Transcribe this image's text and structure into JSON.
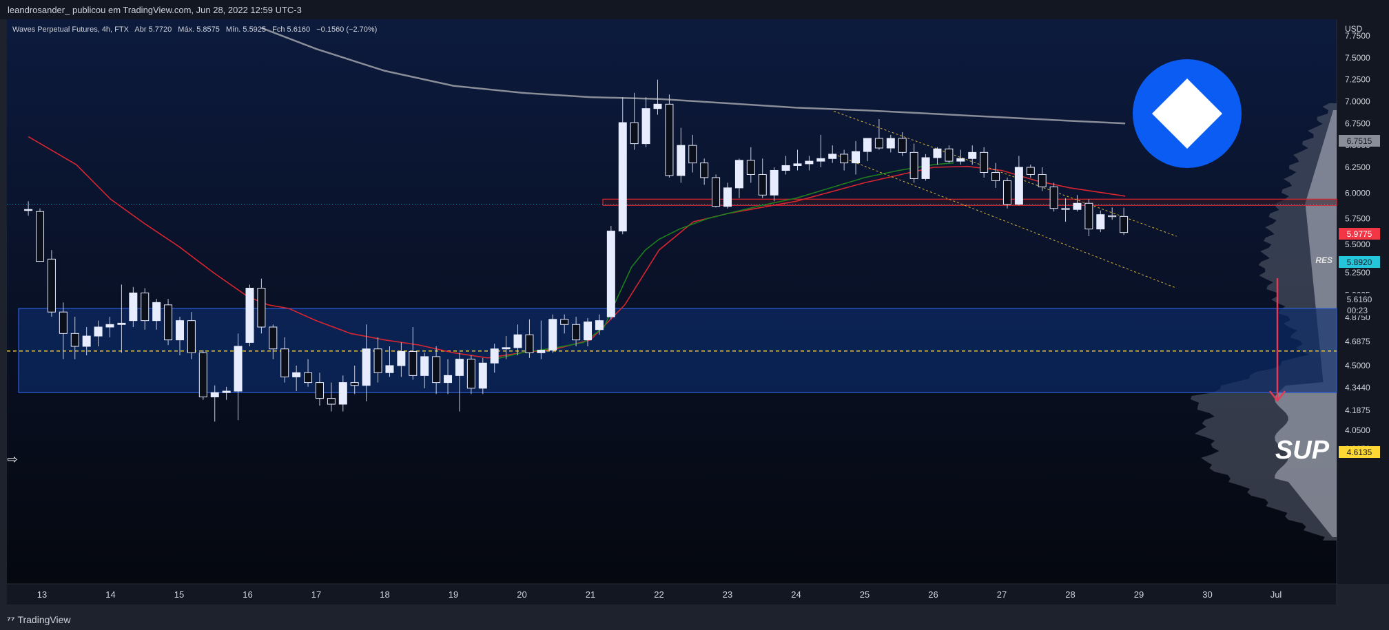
{
  "header": {
    "caption": "leandrosander_ publicou em TradingView.com, Jun 28, 2022 12:59 UTC-3"
  },
  "legend": {
    "symbol": "Waves Perpetual Futures, 4h, FTX",
    "o_label": "Abr",
    "o_value": "5.7720",
    "h_label": "Máx.",
    "h_value": "5.8575",
    "l_label": "Mín.",
    "l_value": "5.5925",
    "c_label": "Fch",
    "c_value": "5.6160",
    "change": "−0.1560 (−2.70%)"
  },
  "footer": {
    "brand": "TradingView"
  },
  "colors": {
    "background": "#0b1220",
    "zone_fill": "#0d2d6b",
    "candle_up": "#e8ecff",
    "candle_down": "#0b0f1a",
    "ema_red": "#d9252f",
    "ema_green": "#1d7f1d",
    "ma_grey": "#8a8e99",
    "res_label": "#26c6da",
    "red_label": "#f23645",
    "sup_label": "#fdd835",
    "logo_blue": "#0b5cf2"
  },
  "annotations": {
    "res": "RES",
    "sup": "SUP",
    "price_current": "5.6160",
    "countdown": "00:23",
    "price_red": "5.9775",
    "price_res": "5.8920",
    "price_sup": "4.6135",
    "price_grey": "6.7515"
  },
  "chart_data": {
    "type": "candlestick",
    "title": "Waves Perpetual Futures, 4h, FTX",
    "currency": "USD",
    "ylim": [
      3.875,
      7.875
    ],
    "x_ticks": [
      "13",
      "14",
      "15",
      "16",
      "17",
      "18",
      "19",
      "20",
      "21",
      "22",
      "23",
      "24",
      "25",
      "26",
      "27",
      "28",
      "29",
      "30",
      "Jul"
    ],
    "y_ticks": [
      "7.7500",
      "7.5000",
      "7.2500",
      "7.0000",
      "6.7500",
      "6.5000",
      "6.2500",
      "6.0000",
      "5.7500",
      "5.5000",
      "5.2500",
      "5.0625",
      "4.8750",
      "4.6875",
      "4.5000",
      "4.3440",
      "4.1875",
      "4.0500",
      "3.9250"
    ],
    "zones": [
      {
        "name": "SUP",
        "low": 4.31,
        "high": 4.95
      },
      {
        "name": "RES",
        "low": 5.88,
        "high": 5.94
      }
    ],
    "horizontal_levels": [
      4.6135,
      5.892
    ],
    "candles": [
      {
        "t": 12.8,
        "o": 5.84,
        "h": 5.92,
        "l": 5.78,
        "c": 5.84
      },
      {
        "t": 12.97,
        "o": 5.82,
        "h": 5.85,
        "l": 5.35,
        "c": 5.35
      },
      {
        "t": 13.14,
        "o": 5.37,
        "h": 5.45,
        "l": 4.88,
        "c": 4.92
      },
      {
        "t": 13.31,
        "o": 4.92,
        "h": 5.0,
        "l": 4.55,
        "c": 4.75
      },
      {
        "t": 13.48,
        "o": 4.75,
        "h": 4.88,
        "l": 4.55,
        "c": 4.65
      },
      {
        "t": 13.65,
        "o": 4.65,
        "h": 4.8,
        "l": 4.58,
        "c": 4.73
      },
      {
        "t": 13.82,
        "o": 4.73,
        "h": 4.85,
        "l": 4.65,
        "c": 4.8
      },
      {
        "t": 13.99,
        "o": 4.8,
        "h": 4.88,
        "l": 4.72,
        "c": 4.82
      },
      {
        "t": 14.16,
        "o": 4.82,
        "h": 5.15,
        "l": 4.6,
        "c": 4.83
      },
      {
        "t": 14.33,
        "o": 4.85,
        "h": 5.13,
        "l": 4.8,
        "c": 5.08
      },
      {
        "t": 14.5,
        "o": 5.08,
        "h": 5.12,
        "l": 4.78,
        "c": 4.85
      },
      {
        "t": 14.67,
        "o": 4.85,
        "h": 5.03,
        "l": 4.78,
        "c": 5.0
      },
      {
        "t": 14.84,
        "o": 4.98,
        "h": 5.03,
        "l": 4.66,
        "c": 4.7
      },
      {
        "t": 15.01,
        "o": 4.7,
        "h": 4.88,
        "l": 4.58,
        "c": 4.85
      },
      {
        "t": 15.18,
        "o": 4.85,
        "h": 4.92,
        "l": 4.55,
        "c": 4.6
      },
      {
        "t": 15.35,
        "o": 4.6,
        "h": 4.62,
        "l": 4.26,
        "c": 4.28
      },
      {
        "t": 15.52,
        "o": 4.28,
        "h": 4.36,
        "l": 4.11,
        "c": 4.31
      },
      {
        "t": 15.69,
        "o": 4.31,
        "h": 4.35,
        "l": 4.26,
        "c": 4.32
      },
      {
        "t": 15.86,
        "o": 4.32,
        "h": 4.75,
        "l": 4.12,
        "c": 4.65
      },
      {
        "t": 16.03,
        "o": 4.68,
        "h": 5.15,
        "l": 4.65,
        "c": 5.12
      },
      {
        "t": 16.2,
        "o": 5.12,
        "h": 5.2,
        "l": 4.75,
        "c": 4.8
      },
      {
        "t": 16.37,
        "o": 4.8,
        "h": 4.82,
        "l": 4.55,
        "c": 4.63
      },
      {
        "t": 16.54,
        "o": 4.63,
        "h": 4.72,
        "l": 4.38,
        "c": 4.42
      },
      {
        "t": 16.71,
        "o": 4.42,
        "h": 4.5,
        "l": 4.32,
        "c": 4.45
      },
      {
        "t": 16.88,
        "o": 4.45,
        "h": 4.55,
        "l": 4.35,
        "c": 4.38
      },
      {
        "t": 17.05,
        "o": 4.38,
        "h": 4.45,
        "l": 4.22,
        "c": 4.27
      },
      {
        "t": 17.22,
        "o": 4.27,
        "h": 4.38,
        "l": 4.18,
        "c": 4.23
      },
      {
        "t": 17.39,
        "o": 4.23,
        "h": 4.43,
        "l": 4.18,
        "c": 4.38
      },
      {
        "t": 17.56,
        "o": 4.38,
        "h": 4.5,
        "l": 4.3,
        "c": 4.36
      },
      {
        "t": 17.73,
        "o": 4.36,
        "h": 4.82,
        "l": 4.25,
        "c": 4.63
      },
      {
        "t": 17.9,
        "o": 4.63,
        "h": 4.72,
        "l": 4.38,
        "c": 4.45
      },
      {
        "t": 18.07,
        "o": 4.45,
        "h": 4.65,
        "l": 4.42,
        "c": 4.5
      },
      {
        "t": 18.24,
        "o": 4.5,
        "h": 4.68,
        "l": 4.42,
        "c": 4.61
      },
      {
        "t": 18.41,
        "o": 4.61,
        "h": 4.8,
        "l": 4.4,
        "c": 4.43
      },
      {
        "t": 18.58,
        "o": 4.43,
        "h": 4.6,
        "l": 4.34,
        "c": 4.57
      },
      {
        "t": 18.75,
        "o": 4.57,
        "h": 4.65,
        "l": 4.3,
        "c": 4.38
      },
      {
        "t": 18.92,
        "o": 4.38,
        "h": 4.55,
        "l": 4.3,
        "c": 4.43
      },
      {
        "t": 19.09,
        "o": 4.43,
        "h": 4.6,
        "l": 4.18,
        "c": 4.55
      },
      {
        "t": 19.26,
        "o": 4.55,
        "h": 4.58,
        "l": 4.3,
        "c": 4.34
      },
      {
        "t": 19.43,
        "o": 4.34,
        "h": 4.56,
        "l": 4.3,
        "c": 4.52
      },
      {
        "t": 19.6,
        "o": 4.52,
        "h": 4.67,
        "l": 4.45,
        "c": 4.63
      },
      {
        "t": 19.77,
        "o": 4.63,
        "h": 4.73,
        "l": 4.55,
        "c": 4.64
      },
      {
        "t": 19.94,
        "o": 4.64,
        "h": 4.82,
        "l": 4.58,
        "c": 4.74
      },
      {
        "t": 20.11,
        "o": 4.74,
        "h": 4.86,
        "l": 4.56,
        "c": 4.6
      },
      {
        "t": 20.28,
        "o": 4.6,
        "h": 4.85,
        "l": 4.55,
        "c": 4.62
      },
      {
        "t": 20.45,
        "o": 4.62,
        "h": 4.9,
        "l": 4.6,
        "c": 4.86
      },
      {
        "t": 20.62,
        "o": 4.86,
        "h": 4.9,
        "l": 4.75,
        "c": 4.82
      },
      {
        "t": 20.79,
        "o": 4.82,
        "h": 4.88,
        "l": 4.65,
        "c": 4.7
      },
      {
        "t": 20.96,
        "o": 4.7,
        "h": 4.87,
        "l": 4.65,
        "c": 4.84
      },
      {
        "t": 21.13,
        "o": 4.78,
        "h": 4.9,
        "l": 4.74,
        "c": 4.85
      },
      {
        "t": 21.3,
        "o": 4.88,
        "h": 5.68,
        "l": 4.86,
        "c": 5.63
      },
      {
        "t": 21.47,
        "o": 5.63,
        "h": 7.05,
        "l": 5.6,
        "c": 6.76
      },
      {
        "t": 21.64,
        "o": 6.76,
        "h": 7.1,
        "l": 6.45,
        "c": 6.52
      },
      {
        "t": 21.81,
        "o": 6.52,
        "h": 7.05,
        "l": 6.48,
        "c": 6.92
      },
      {
        "t": 21.98,
        "o": 6.92,
        "h": 7.25,
        "l": 6.85,
        "c": 6.97
      },
      {
        "t": 22.15,
        "o": 6.97,
        "h": 7.08,
        "l": 6.15,
        "c": 6.17
      },
      {
        "t": 22.32,
        "o": 6.17,
        "h": 6.7,
        "l": 6.1,
        "c": 6.5
      },
      {
        "t": 22.49,
        "o": 6.5,
        "h": 6.62,
        "l": 6.2,
        "c": 6.3
      },
      {
        "t": 22.66,
        "o": 6.3,
        "h": 6.35,
        "l": 6.08,
        "c": 6.15
      },
      {
        "t": 22.83,
        "o": 6.15,
        "h": 6.18,
        "l": 5.86,
        "c": 5.87
      },
      {
        "t": 23.0,
        "o": 5.87,
        "h": 6.1,
        "l": 5.85,
        "c": 6.05
      },
      {
        "t": 23.17,
        "o": 6.05,
        "h": 6.35,
        "l": 5.95,
        "c": 6.33
      },
      {
        "t": 23.34,
        "o": 6.33,
        "h": 6.48,
        "l": 6.1,
        "c": 6.18
      },
      {
        "t": 23.51,
        "o": 6.18,
        "h": 6.35,
        "l": 5.95,
        "c": 5.98
      },
      {
        "t": 23.68,
        "o": 5.98,
        "h": 6.25,
        "l": 5.92,
        "c": 6.22
      },
      {
        "t": 23.85,
        "o": 6.22,
        "h": 6.38,
        "l": 6.18,
        "c": 6.27
      },
      {
        "t": 24.02,
        "o": 6.27,
        "h": 6.45,
        "l": 6.22,
        "c": 6.29
      },
      {
        "t": 24.19,
        "o": 6.29,
        "h": 6.38,
        "l": 6.22,
        "c": 6.32
      },
      {
        "t": 24.36,
        "o": 6.32,
        "h": 6.62,
        "l": 6.25,
        "c": 6.35
      },
      {
        "t": 24.53,
        "o": 6.35,
        "h": 6.5,
        "l": 6.3,
        "c": 6.4
      },
      {
        "t": 24.7,
        "o": 6.4,
        "h": 6.45,
        "l": 6.22,
        "c": 6.3
      },
      {
        "t": 24.87,
        "o": 6.3,
        "h": 6.55,
        "l": 6.18,
        "c": 6.43
      },
      {
        "t": 25.04,
        "o": 6.43,
        "h": 6.58,
        "l": 6.32,
        "c": 6.58
      },
      {
        "t": 25.21,
        "o": 6.58,
        "h": 6.8,
        "l": 6.45,
        "c": 6.47
      },
      {
        "t": 25.38,
        "o": 6.47,
        "h": 6.62,
        "l": 6.42,
        "c": 6.58
      },
      {
        "t": 25.55,
        "o": 6.58,
        "h": 6.65,
        "l": 6.38,
        "c": 6.42
      },
      {
        "t": 25.72,
        "o": 6.42,
        "h": 6.52,
        "l": 6.1,
        "c": 6.14
      },
      {
        "t": 25.89,
        "o": 6.14,
        "h": 6.4,
        "l": 6.12,
        "c": 6.36
      },
      {
        "t": 26.06,
        "o": 6.36,
        "h": 6.48,
        "l": 6.28,
        "c": 6.46
      },
      {
        "t": 26.23,
        "o": 6.46,
        "h": 6.5,
        "l": 6.3,
        "c": 6.32
      },
      {
        "t": 26.4,
        "o": 6.32,
        "h": 6.45,
        "l": 6.28,
        "c": 6.35
      },
      {
        "t": 26.57,
        "o": 6.35,
        "h": 6.5,
        "l": 6.28,
        "c": 6.42
      },
      {
        "t": 26.74,
        "o": 6.42,
        "h": 6.48,
        "l": 6.15,
        "c": 6.2
      },
      {
        "t": 26.91,
        "o": 6.2,
        "h": 6.3,
        "l": 6.05,
        "c": 6.12
      },
      {
        "t": 27.08,
        "o": 6.12,
        "h": 6.15,
        "l": 5.85,
        "c": 5.89
      },
      {
        "t": 27.25,
        "o": 5.89,
        "h": 6.38,
        "l": 5.88,
        "c": 6.25
      },
      {
        "t": 27.42,
        "o": 6.25,
        "h": 6.28,
        "l": 6.15,
        "c": 6.18
      },
      {
        "t": 27.59,
        "o": 6.18,
        "h": 6.25,
        "l": 6.02,
        "c": 6.06
      },
      {
        "t": 27.76,
        "o": 6.06,
        "h": 6.1,
        "l": 5.82,
        "c": 5.85
      },
      {
        "t": 27.93,
        "o": 5.85,
        "h": 5.95,
        "l": 5.72,
        "c": 5.84
      },
      {
        "t": 28.1,
        "o": 5.84,
        "h": 5.98,
        "l": 5.82,
        "c": 5.9
      },
      {
        "t": 28.27,
        "o": 5.9,
        "h": 5.94,
        "l": 5.58,
        "c": 5.65
      },
      {
        "t": 28.44,
        "o": 5.65,
        "h": 5.83,
        "l": 5.62,
        "c": 5.79
      },
      {
        "t": 28.61,
        "o": 5.78,
        "h": 5.86,
        "l": 5.74,
        "c": 5.77
      },
      {
        "t": 28.78,
        "o": 5.772,
        "h": 5.8575,
        "l": 5.5925,
        "c": 5.616
      }
    ],
    "ema_red": [
      [
        12.8,
        6.6
      ],
      [
        13.5,
        6.28
      ],
      [
        14.0,
        5.94
      ],
      [
        14.5,
        5.7
      ],
      [
        15.0,
        5.48
      ],
      [
        15.5,
        5.25
      ],
      [
        16.0,
        5.05
      ],
      [
        16.3,
        4.98
      ],
      [
        16.6,
        4.95
      ],
      [
        17.0,
        4.85
      ],
      [
        17.5,
        4.75
      ],
      [
        18.0,
        4.7
      ],
      [
        18.5,
        4.66
      ],
      [
        19.0,
        4.6
      ],
      [
        19.5,
        4.56
      ],
      [
        20.0,
        4.6
      ],
      [
        20.5,
        4.63
      ],
      [
        21.0,
        4.7
      ],
      [
        21.5,
        4.98
      ],
      [
        22.0,
        5.45
      ],
      [
        22.5,
        5.72
      ],
      [
        23.0,
        5.8
      ],
      [
        24.0,
        5.92
      ],
      [
        25.0,
        6.1
      ],
      [
        26.0,
        6.25
      ],
      [
        26.5,
        6.26
      ],
      [
        27.0,
        6.22
      ],
      [
        27.5,
        6.12
      ],
      [
        28.0,
        6.05
      ],
      [
        28.8,
        5.97
      ]
    ],
    "ema_green": [
      [
        19.6,
        4.55
      ],
      [
        20.0,
        4.6
      ],
      [
        20.5,
        4.64
      ],
      [
        20.9,
        4.68
      ],
      [
        21.2,
        4.8
      ],
      [
        21.4,
        5.05
      ],
      [
        21.6,
        5.3
      ],
      [
        21.8,
        5.45
      ],
      [
        22.0,
        5.55
      ],
      [
        22.3,
        5.65
      ],
      [
        22.7,
        5.75
      ],
      [
        23.0,
        5.8
      ],
      [
        23.5,
        5.88
      ],
      [
        24.0,
        5.95
      ],
      [
        24.5,
        6.05
      ],
      [
        25.0,
        6.15
      ],
      [
        25.5,
        6.22
      ],
      [
        26.0,
        6.28
      ],
      [
        26.3,
        6.3
      ]
    ],
    "ma_grey": [
      [
        16.2,
        7.84
      ],
      [
        17.0,
        7.6
      ],
      [
        18.0,
        7.35
      ],
      [
        19.0,
        7.18
      ],
      [
        20.0,
        7.1
      ],
      [
        21.0,
        7.05
      ],
      [
        22.0,
        7.03
      ],
      [
        23.0,
        6.98
      ],
      [
        24.0,
        6.93
      ],
      [
        25.0,
        6.9
      ],
      [
        26.0,
        6.86
      ],
      [
        27.0,
        6.82
      ],
      [
        28.0,
        6.78
      ],
      [
        28.8,
        6.75
      ]
    ],
    "channel_upper": [
      [
        24.55,
        6.89
      ],
      [
        29.55,
        5.58
      ]
    ],
    "channel_lower": [
      [
        24.55,
        6.4
      ],
      [
        29.55,
        5.12
      ]
    ]
  }
}
